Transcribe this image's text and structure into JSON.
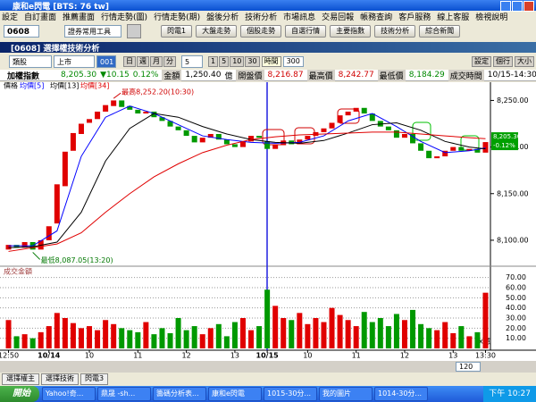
{
  "window_title": "康和e閃電 [BTS: 76 tw]",
  "menu": [
    "設定",
    "自訂畫面",
    "推薦畫面",
    "行情走勢(圖)",
    "行情走勢(期)",
    "盤後分析",
    "技術分析",
    "市場訊息",
    "交易回報",
    "帳務查詢",
    "客戶服務",
    "線上客服",
    "檢視說明"
  ],
  "toolbar": {
    "code": "0608",
    "tool_select": "證券常用工具",
    "buttons": [
      "閃電1",
      "大盤走勢",
      "個股走勢",
      "自選行情",
      "主要指數",
      "技術分析",
      "綜合新聞"
    ]
  },
  "panel_title": "[0608] 選擇權技術分析",
  "controls": {
    "group": "類股",
    "market": "上市",
    "code": "001",
    "periods": [
      "日",
      "週",
      "月",
      "分"
    ],
    "minutes": "5",
    "steps": [
      "1",
      "5",
      "10",
      "30"
    ],
    "time_label": "時間",
    "time_value": "300",
    "right_buttons": [
      "設定",
      "個行",
      "大小"
    ]
  },
  "quote": {
    "name": "加權指數",
    "price": "8,205.30",
    "change": "▼10.15",
    "change_pct": "0.12%",
    "amount_label": "金額",
    "amount": "1,250.40",
    "amount_unit": "億",
    "open_label": "開盤價",
    "open": "8,216.87",
    "high_label": "最高價",
    "high": "8,242.77",
    "low_label": "最低價",
    "low": "8,184.29",
    "time_label": "成交時間",
    "time": "10/15-14:30:00"
  },
  "chart_data": [
    {
      "type": "candlestick",
      "price_label": "價格",
      "up_color": "#e00000",
      "down_color": "#009900",
      "categories": [
        "12:50",
        null,
        null,
        null,
        null,
        "10/14",
        null,
        null,
        null,
        null,
        "10",
        null,
        null,
        null,
        null,
        null,
        "11",
        null,
        null,
        null,
        null,
        null,
        "12",
        null,
        null,
        null,
        null,
        null,
        "13",
        null,
        null,
        null,
        "10/15",
        null,
        null,
        null,
        null,
        "10",
        null,
        null,
        null,
        null,
        null,
        "11",
        null,
        null,
        null,
        null,
        null,
        "12",
        null,
        null,
        null,
        null,
        null,
        "13",
        null,
        null,
        null,
        "13:30"
      ],
      "open": [
        8090,
        8095,
        8092,
        8098,
        8090,
        8100,
        8118,
        8158,
        8196,
        8214,
        8226,
        8230,
        8238,
        8244,
        8250,
        8244,
        8240,
        8236,
        8238,
        8232,
        8228,
        8222,
        8218,
        8212,
        8205,
        8210,
        8214,
        8208,
        8203,
        8200,
        8206,
        8212,
        8206,
        8198,
        8202,
        8207,
        8203,
        8208,
        8212,
        8216,
        8220,
        8226,
        8234,
        8238,
        8242,
        8236,
        8228,
        8222,
        8218,
        8210,
        8214,
        8204,
        8196,
        8188,
        8190,
        8196,
        8200,
        8196,
        8198,
        8194
      ],
      "close": [
        8095,
        8092,
        8098,
        8090,
        8100,
        8115,
        8160,
        8195,
        8215,
        8225,
        8230,
        8238,
        8245,
        8250,
        8243,
        8240,
        8236,
        8238,
        8232,
        8228,
        8222,
        8218,
        8212,
        8205,
        8210,
        8214,
        8208,
        8203,
        8200,
        8206,
        8212,
        8210,
        8198,
        8202,
        8207,
        8203,
        8208,
        8212,
        8216,
        8220,
        8226,
        8234,
        8238,
        8242,
        8236,
        8228,
        8222,
        8218,
        8210,
        8214,
        8204,
        8196,
        8188,
        8190,
        8196,
        8200,
        8196,
        8198,
        8194,
        8205.3
      ],
      "series": [
        {
          "name": "均價[5]",
          "color": "#0000ff",
          "x": [
            0,
            3,
            6,
            9,
            12,
            15,
            18,
            21,
            24,
            27,
            30,
            33,
            36,
            39,
            42,
            45,
            48,
            51,
            54,
            57,
            59
          ],
          "values": [
            8094,
            8094,
            8110,
            8190,
            8232,
            8244,
            8236,
            8224,
            8212,
            8208,
            8205,
            8204,
            8205,
            8212,
            8228,
            8236,
            8222,
            8206,
            8194,
            8196,
            8199
          ]
        },
        {
          "name": "均價[13]",
          "color": "#000000",
          "x": [
            0,
            3,
            6,
            9,
            12,
            15,
            18,
            21,
            24,
            27,
            30,
            33,
            36,
            39,
            42,
            45,
            48,
            51,
            54,
            57,
            59
          ],
          "values": [
            8092,
            8093,
            8098,
            8130,
            8185,
            8220,
            8236,
            8232,
            8222,
            8214,
            8208,
            8205,
            8204,
            8207,
            8215,
            8224,
            8226,
            8218,
            8206,
            8200,
            8198
          ]
        },
        {
          "name": "均價[34]",
          "color": "#e00000",
          "x": [
            0,
            3,
            6,
            9,
            12,
            15,
            18,
            21,
            24,
            27,
            30,
            33,
            36,
            39,
            42,
            45,
            48,
            51,
            54,
            57,
            59
          ],
          "values": [
            8088,
            8092,
            8096,
            8108,
            8130,
            8150,
            8168,
            8182,
            8194,
            8202,
            8208,
            8211,
            8213,
            8214,
            8215,
            8216,
            8216,
            8214,
            8212,
            8210,
            8209
          ]
        }
      ],
      "ylim": [
        8075,
        8260
      ],
      "yticks": [
        {
          "value": 8250,
          "label": "8,250.00"
        },
        {
          "value": 8200,
          "label": "8,200.00"
        },
        {
          "value": 8150,
          "label": "8,150.00"
        },
        {
          "value": 8100,
          "label": "8,100.00"
        }
      ],
      "annotations": [
        {
          "text": "最高8,252.20(10:30)",
          "x": 13,
          "y": 8252.2
        },
        {
          "text": "最低8,087.05(13:20)",
          "x": 3,
          "y": 8087.05
        }
      ],
      "last_change": "-0.12%"
    },
    {
      "type": "bar",
      "title": "成交金額",
      "unit": "x億",
      "values": [
        28,
        12,
        14,
        10,
        16,
        22,
        35,
        30,
        25,
        20,
        22,
        18,
        28,
        24,
        20,
        18,
        16,
        26,
        14,
        20,
        15,
        30,
        18,
        22,
        14,
        20,
        24,
        12,
        26,
        30,
        18,
        22,
        58,
        42,
        30,
        28,
        35,
        24,
        30,
        26,
        40,
        33,
        28,
        22,
        36,
        26,
        30,
        22,
        34,
        28,
        38,
        24,
        20,
        18,
        26,
        15,
        22,
        12,
        16,
        55
      ],
      "ylim": [
        0,
        75
      ],
      "yticks": [
        {
          "value": 70,
          "label": "70.00"
        },
        {
          "value": 60,
          "label": "60.00"
        },
        {
          "value": 50,
          "label": "50.00"
        },
        {
          "value": 40,
          "label": "40.00"
        },
        {
          "value": 30,
          "label": "30.00"
        },
        {
          "value": 20,
          "label": "20.00"
        },
        {
          "value": 10,
          "label": "10.00"
        }
      ]
    }
  ],
  "zoom": "120",
  "tabs": [
    "選擇權主",
    "選擇技術",
    "閃電3"
  ],
  "taskbar": {
    "start": "開始",
    "items": [
      "Yahoo!奇...",
      "鼎晟 -sh...",
      "籌碼分析表...",
      "康和e閃電",
      "1015-30分...",
      "我的圖片",
      "1014-30分..."
    ],
    "clock": "下午 10:27"
  }
}
